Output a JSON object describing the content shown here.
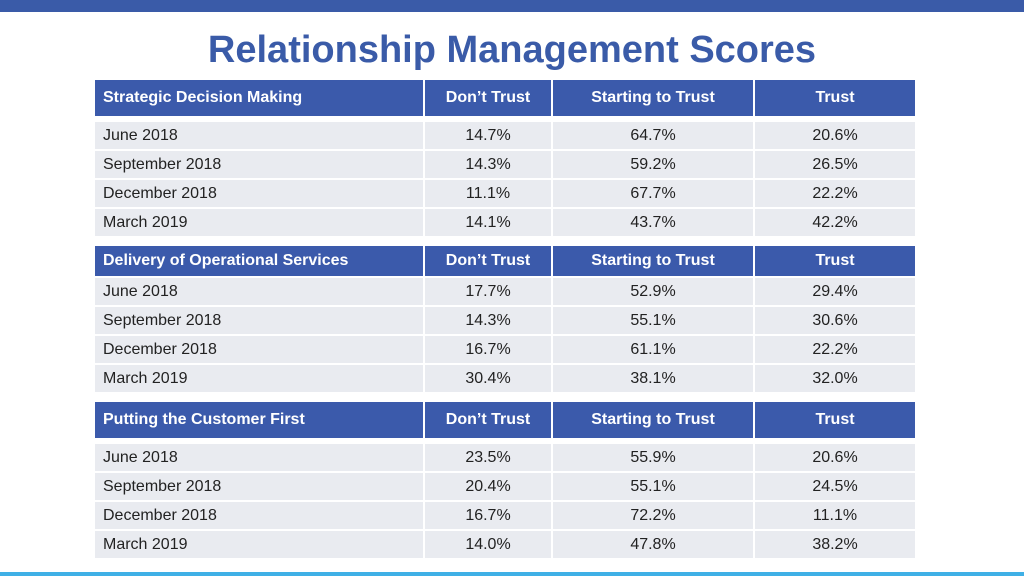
{
  "title": "Relationship Management Scores",
  "colors": {
    "accent": "#3a5ba8",
    "header_bg": "#3b5aab",
    "row_bg": "#e9ebf0",
    "bottom_bar": "#3fb0e6"
  },
  "columns": [
    "Don’t Trust",
    "Starting to Trust",
    "Trust"
  ],
  "tables": [
    {
      "name": "Strategic Decision Making",
      "rows": [
        {
          "period": "June 2018",
          "values": [
            "14.7%",
            "64.7%",
            "20.6%"
          ]
        },
        {
          "period": "September 2018",
          "values": [
            "14.3%",
            "59.2%",
            "26.5%"
          ]
        },
        {
          "period": "December 2018",
          "values": [
            "11.1%",
            "67.7%",
            "22.2%"
          ]
        },
        {
          "period": "March 2019",
          "values": [
            "14.1%",
            "43.7%",
            "42.2%"
          ]
        }
      ]
    },
    {
      "name": "Delivery of Operational Services",
      "rows": [
        {
          "period": "June 2018",
          "values": [
            "17.7%",
            "52.9%",
            "29.4%"
          ]
        },
        {
          "period": "September 2018",
          "values": [
            "14.3%",
            "55.1%",
            "30.6%"
          ]
        },
        {
          "period": "December 2018",
          "values": [
            "16.7%",
            "61.1%",
            "22.2%"
          ]
        },
        {
          "period": "March 2019",
          "values": [
            "30.4%",
            "38.1%",
            "32.0%"
          ]
        }
      ]
    },
    {
      "name": "Putting the Customer First",
      "rows": [
        {
          "period": "June 2018",
          "values": [
            "23.5%",
            "55.9%",
            "20.6%"
          ]
        },
        {
          "period": "September 2018",
          "values": [
            "20.4%",
            "55.1%",
            "24.5%"
          ]
        },
        {
          "period": "December 2018",
          "values": [
            "16.7%",
            "72.2%",
            "11.1%"
          ]
        },
        {
          "period": "March 2019",
          "values": [
            "14.0%",
            "47.8%",
            "38.2%"
          ]
        }
      ]
    }
  ]
}
